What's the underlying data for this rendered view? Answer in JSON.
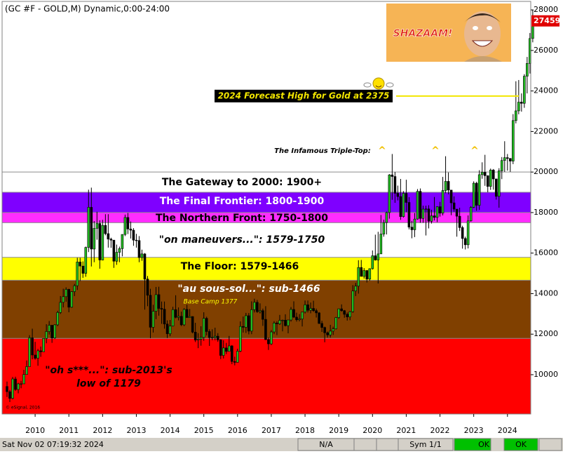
{
  "chart_data": {
    "type": "candlestick",
    "title": "(GC #F - GOLD,M) Dynamic,0:00-24:00",
    "categories": [
      null,
      null,
      null,
      null,
      null,
      null,
      null,
      null,
      null,
      null,
      "2010",
      null,
      null,
      null,
      null,
      null,
      null,
      null,
      null,
      null,
      null,
      null,
      "2011",
      null,
      null,
      null,
      null,
      null,
      null,
      null,
      null,
      null,
      null,
      null,
      "2012",
      null,
      null,
      null,
      null,
      null,
      null,
      null,
      null,
      null,
      null,
      null,
      "2013",
      null,
      null,
      null,
      null,
      null,
      null,
      null,
      null,
      null,
      null,
      null,
      "2014",
      null,
      null,
      null,
      null,
      null,
      null,
      null,
      null,
      null,
      null,
      null,
      "2015",
      null,
      null,
      null,
      null,
      null,
      null,
      null,
      null,
      null,
      null,
      null,
      "2016",
      null,
      null,
      null,
      null,
      null,
      null,
      null,
      null,
      null,
      null,
      null,
      "2017",
      null,
      null,
      null,
      null,
      null,
      null,
      null,
      null,
      null,
      null,
      null,
      "2018",
      null,
      null,
      null,
      null,
      null,
      null,
      null,
      null,
      null,
      null,
      null,
      "2019",
      null,
      null,
      null,
      null,
      null,
      null,
      null,
      null,
      null,
      null,
      null,
      "2020",
      null,
      null,
      null,
      null,
      null,
      null,
      null,
      null,
      null,
      null,
      null,
      "2021",
      null,
      null,
      null,
      null,
      null,
      null,
      null,
      null,
      null,
      null,
      null,
      "2022",
      null,
      null,
      null,
      null,
      null,
      null,
      null,
      null,
      null,
      null,
      null,
      "2023",
      null,
      null,
      null,
      null,
      null,
      null,
      null,
      null,
      null,
      null,
      null,
      "2024",
      null,
      null,
      null,
      null,
      null,
      null,
      null,
      null,
      null
    ],
    "open": [
      9420,
      9160,
      8830,
      9790,
      9270,
      9550,
      9550,
      10010,
      10400,
      11820,
      10970,
      10810,
      11180,
      11130,
      11790,
      12130,
      12440,
      11810,
      12460,
      13070,
      13570,
      13850,
      14210,
      13330,
      14100,
      14390,
      15560,
      15360,
      15000,
      16280,
      18260,
      16200,
      17220,
      17460,
      15660,
      17370,
      16960,
      16690,
      16640,
      15600,
      16040,
      16220,
      16920,
      17760,
      17190,
      17130,
      16640,
      16620,
      15780,
      15960,
      14720,
      13920,
      12340,
      13130,
      13950,
      13270,
      13230,
      12500,
      12020,
      12400,
      13210,
      12830,
      12880,
      12460,
      13220,
      12820,
      12870,
      12100,
      11710,
      11750,
      11840,
      12780,
      12130,
      11830,
      11840,
      11900,
      11720,
      10950,
      11320,
      11150,
      11420,
      10650,
      10610,
      11160,
      12380,
      12340,
      12910,
      12150,
      13210,
      13570,
      13110,
      13160,
      12730,
      11730,
      11520,
      12110,
      12550,
      12510,
      12680,
      12690,
      12420,
      12700,
      13220,
      12840,
      12710,
      12750,
      13090,
      13450,
      13180,
      13270,
      13160,
      13050,
      12530,
      12330,
      12070,
      11960,
      12150,
      12260,
      12820,
      13250,
      13160,
      12980,
      12850,
      13110,
      14130,
      14370,
      15290,
      14850,
      15140,
      14720,
      15230,
      15870,
      15660,
      15960,
      16940,
      17510,
      18000,
      19860,
      19780,
      18950,
      18790,
      17800,
      18950,
      18500,
      17280,
      17150,
      17680,
      19050,
      17710,
      18170,
      18180,
      17570,
      17840,
      17760,
      18290,
      17970,
      19090,
      19540,
      19110,
      18480,
      18170,
      17820,
      17260,
      16720,
      16410,
      17590,
      18260,
      19450,
      18360,
      19870,
      19990,
      19820,
      19290,
      20100,
      19660,
      18800,
      20060,
      20570,
      20710,
      20670,
      20540,
      22540,
      23020,
      23450,
      23390,
      24730,
      25360,
      26590
    ],
    "high": [
      9660,
      9250,
      9890,
      9900,
      9600,
      9700,
      10240,
      10700,
      11950,
      12270,
      11620,
      11270,
      11390,
      11800,
      12490,
      12650,
      12450,
      12490,
      13150,
      13880,
      14240,
      14310,
      14240,
      14120,
      14480,
      15770,
      15770,
      15590,
      16320,
      19130,
      19230,
      17580,
      18040,
      17620,
      17640,
      17920,
      17920,
      16760,
      16650,
      16420,
      16320,
      16930,
      17900,
      17980,
      17560,
      17230,
      16950,
      16840,
      16170,
      16000,
      14870,
      14240,
      13450,
      14330,
      14340,
      13610,
      13610,
      12680,
      12700,
      13350,
      13920,
      13320,
      13110,
      13280,
      13450,
      13240,
      12880,
      12560,
      12050,
      12390,
      13080,
      12860,
      12240,
      12240,
      12320,
      12050,
      11750,
      11700,
      11570,
      11910,
      11460,
      10890,
      11280,
      12630,
      12870,
      13050,
      13040,
      13620,
      13750,
      13690,
      13520,
      13260,
      13380,
      11840,
      12200,
      12640,
      12640,
      12950,
      12720,
      12980,
      12710,
      13340,
      13620,
      13060,
      12990,
      13100,
      13660,
      13660,
      13560,
      13650,
      13260,
      13090,
      12660,
      12370,
      12130,
      12460,
      12370,
      12850,
      13260,
      13470,
      13190,
      13070,
      13140,
      14420,
      14530,
      15650,
      15660,
      15260,
      15160,
      15250,
      16130,
      16910,
      17050,
      17880,
      17650,
      18050,
      19900,
      20890,
      20000,
      19330,
      19660,
      19060,
      19620,
      18760,
      17590,
      17980,
      19160,
      19190,
      18340,
      18340,
      18360,
      18140,
      18770,
      18310,
      18530,
      19760,
      20780,
      19980,
      19100,
      18800,
      18170,
      18240,
      17350,
      16810,
      17860,
      18320,
      19540,
      19520,
      20090,
      20480,
      20850,
      19830,
      20170,
      20150,
      19670,
      20190,
      20740,
      21520,
      20890,
      20690,
      22860,
      24480,
      24540,
      23880,
      24830,
      25680,
      26860,
      28000
    ],
    "low": [
      8900,
      8650,
      8780,
      9200,
      9080,
      9330,
      9540,
      10030,
      10400,
      10760,
      10740,
      10440,
      10880,
      11140,
      11550,
      11980,
      11570,
      11760,
      12400,
      13000,
      13320,
      13600,
      13080,
      13300,
      13880,
      14180,
      14620,
      14780,
      14830,
      16050,
      15340,
      15550,
      16660,
      15230,
      15640,
      16880,
      16270,
      16260,
      15270,
      15420,
      15550,
      15840,
      16840,
      16940,
      16720,
      16360,
      16270,
      15550,
      15620,
      13210,
      13380,
      11800,
      12080,
      12740,
      12910,
      12510,
      12270,
      11810,
      11900,
      12380,
      12780,
      12680,
      12400,
      12400,
      12810,
      12810,
      12040,
      11610,
      11310,
      11430,
      11670,
      11940,
      11420,
      11700,
      11700,
      11620,
      10770,
      10800,
      11020,
      11140,
      10520,
      10460,
      10600,
      11110,
      12080,
      12060,
      11990,
      12000,
      13070,
      13050,
      13020,
      12410,
      11710,
      11220,
      11460,
      12000,
      11950,
      12460,
      12140,
      12380,
      12040,
      12620,
      12800,
      12620,
      12630,
      12380,
      13020,
      13070,
      13030,
      13100,
      12820,
      12500,
      12110,
      11600,
      11830,
      11830,
      11960,
      12230,
      12760,
      13110,
      12810,
      12670,
      12690,
      13060,
      13880,
      14000,
      14850,
      14740,
      14550,
      14640,
      15190,
      15630,
      14500,
      15990,
      16810,
      16920,
      17700,
      18630,
      18480,
      18600,
      17640,
      17750,
      18020,
      17170,
      16730,
      16790,
      17650,
      17500,
      17500,
      16870,
      17220,
      17460,
      17610,
      17530,
      17800,
      17860,
      18950,
      18900,
      17870,
      18040,
      16810,
      17090,
      16220,
      16180,
      16230,
      17550,
      18220,
      18090,
      18130,
      19670,
      19320,
      19000,
      19120,
      19130,
      18640,
      18240,
      19650,
      20010,
      20070,
      20010,
      20390,
      22400,
      22850,
      22980,
      23170,
      23880,
      24860,
      26400
    ],
    "close": [
      9160,
      8830,
      9790,
      9270,
      9550,
      9550,
      10010,
      10400,
      11820,
      10970,
      10810,
      11180,
      11130,
      11790,
      12130,
      12440,
      11810,
      12460,
      13070,
      13570,
      13850,
      14210,
      13330,
      14100,
      14390,
      15560,
      15360,
      15000,
      16280,
      18260,
      16200,
      17220,
      17460,
      15660,
      17370,
      16960,
      16690,
      16640,
      15600,
      16040,
      16220,
      16920,
      17760,
      17190,
      17130,
      16640,
      16620,
      15780,
      15960,
      14720,
      13920,
      12340,
      13130,
      13950,
      13270,
      13230,
      12500,
      12020,
      12400,
      13210,
      12830,
      12880,
      12460,
      13220,
      12820,
      12870,
      12100,
      11710,
      11750,
      11840,
      12780,
      12130,
      11830,
      11840,
      11900,
      11720,
      10950,
      11320,
      11150,
      11420,
      10650,
      10610,
      11160,
      12380,
      12340,
      12910,
      12150,
      13210,
      13570,
      13110,
      13160,
      12730,
      11730,
      11520,
      12110,
      12550,
      12510,
      12680,
      12690,
      12420,
      12700,
      13220,
      12840,
      12710,
      12750,
      13090,
      13450,
      13180,
      13270,
      13160,
      13050,
      12530,
      12330,
      12070,
      11960,
      12150,
      12260,
      12820,
      13250,
      13160,
      12980,
      12850,
      13110,
      14130,
      14370,
      15290,
      14850,
      15140,
      14720,
      15230,
      15870,
      15660,
      15960,
      16940,
      17510,
      18000,
      19860,
      19780,
      18950,
      18790,
      17800,
      18950,
      18500,
      17280,
      17150,
      17680,
      19050,
      17710,
      18170,
      18180,
      17570,
      17840,
      17760,
      18290,
      17970,
      19090,
      19540,
      19110,
      18480,
      18170,
      17820,
      17260,
      16720,
      16410,
      17590,
      18260,
      19450,
      18360,
      19870,
      19990,
      19820,
      19290,
      20100,
      19660,
      18800,
      20060,
      20570,
      20710,
      20670,
      20540,
      22540,
      23020,
      23450,
      23390,
      24730,
      25360,
      26590,
      27459
    ],
    "up_color": "#22bb22",
    "down_color": "#000000",
    "ylim": [
      8060,
      28420
    ],
    "yticks": [
      10000,
      12000,
      14000,
      16000,
      18000,
      20000,
      22000,
      24000,
      26000,
      28000
    ],
    "zones": [
      {
        "label": "The Gateway to 2000:  1900+",
        "from": 19000,
        "to": 20000,
        "color": "#ffffff",
        "text_color": "#000000"
      },
      {
        "label": "The Final Frontier:  1800-1900",
        "from": 18000,
        "to": 19000,
        "color": "#7f00ff",
        "text_color": "#ffffff"
      },
      {
        "label": "The Northern Front:  1750-1800",
        "from": 17500,
        "to": 18000,
        "color": "#ff2cff",
        "text_color": "#000000"
      },
      {
        "label": "\"on maneuvers...\":  1579-1750",
        "from": 15790,
        "to": 17500,
        "color": "#ffffff",
        "text_color": "#000000",
        "italic": true
      },
      {
        "label": "The Floor:  1579-1466",
        "from": 14660,
        "to": 15790,
        "color": "#ffff00",
        "text_color": "#000000"
      },
      {
        "label": "\"au sous-sol...\":  sub-1466",
        "from": 11790,
        "to": 14660,
        "color": "#804000",
        "text_color": "#ffffff",
        "italic": true
      },
      {
        "label": [
          "\"oh s***...\":  sub-2013's",
          "low of 1179"
        ],
        "to": 11790,
        "color": "#ff0000",
        "text_color": "#000000",
        "italic": true
      }
    ],
    "base_camp": "Base Camp 1377",
    "forecast": {
      "label": "2024 Forecast High for Gold at 2375",
      "value": 23750,
      "color": "#f2e600"
    },
    "triple_top": {
      "label": "The Infamous Triple-Top:",
      "markers": [
        "^",
        "^",
        "^"
      ]
    },
    "shazaam": "SHAZAAM!",
    "copyright": "© eSignal, 2016"
  },
  "status_bar": {
    "datetime": "Sat Nov 02 07:19:32 2024",
    "cells": [
      "N/A",
      "Sym 1/1",
      "OK",
      "OK"
    ]
  }
}
